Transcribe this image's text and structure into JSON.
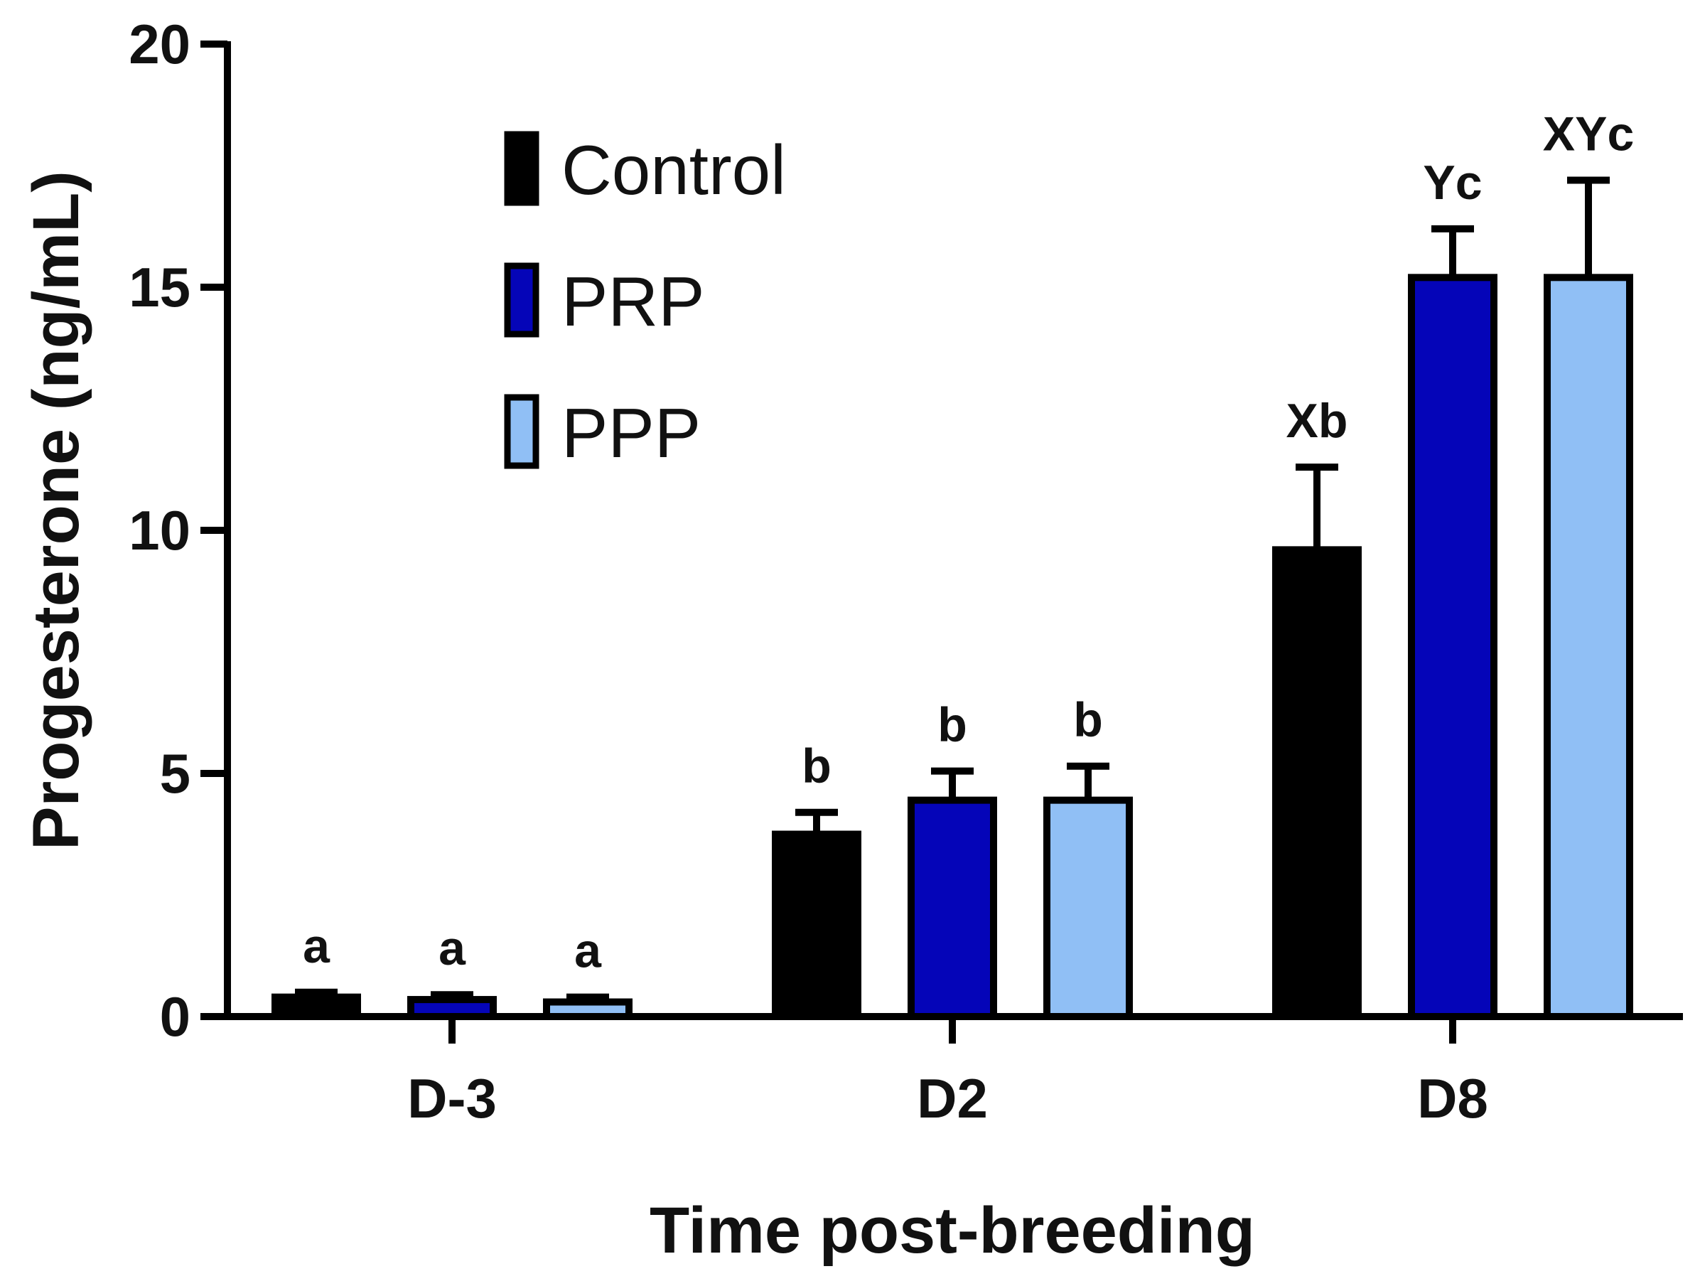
{
  "chart_data": {
    "type": "bar",
    "title": "",
    "xlabel": "Time post-breeding",
    "ylabel": "Progesterone (ng/mL)",
    "ylim": [
      0,
      20
    ],
    "yticks": [
      "0",
      "5",
      "10",
      "15",
      "20"
    ],
    "categories": [
      "D-3",
      "D2",
      "D8"
    ],
    "grid": false,
    "legend_position": "top-left",
    "series": [
      {
        "name": "Control",
        "color": "#000000",
        "values": [
          0.4,
          3.75,
          9.6
        ],
        "errors": [
          0.1,
          0.45,
          1.7
        ],
        "labels": [
          "a",
          "b",
          "Xb"
        ]
      },
      {
        "name": "PRP",
        "color": "#0505b8",
        "values": [
          0.35,
          4.45,
          15.2
        ],
        "errors": [
          0.1,
          0.6,
          1.0
        ],
        "labels": [
          "a",
          "b",
          "Yc"
        ]
      },
      {
        "name": "PPP",
        "color": "#90bff5",
        "values": [
          0.3,
          4.45,
          15.2
        ],
        "errors": [
          0.1,
          0.7,
          2.0
        ],
        "labels": [
          "a",
          "b",
          "XYc"
        ]
      }
    ]
  }
}
